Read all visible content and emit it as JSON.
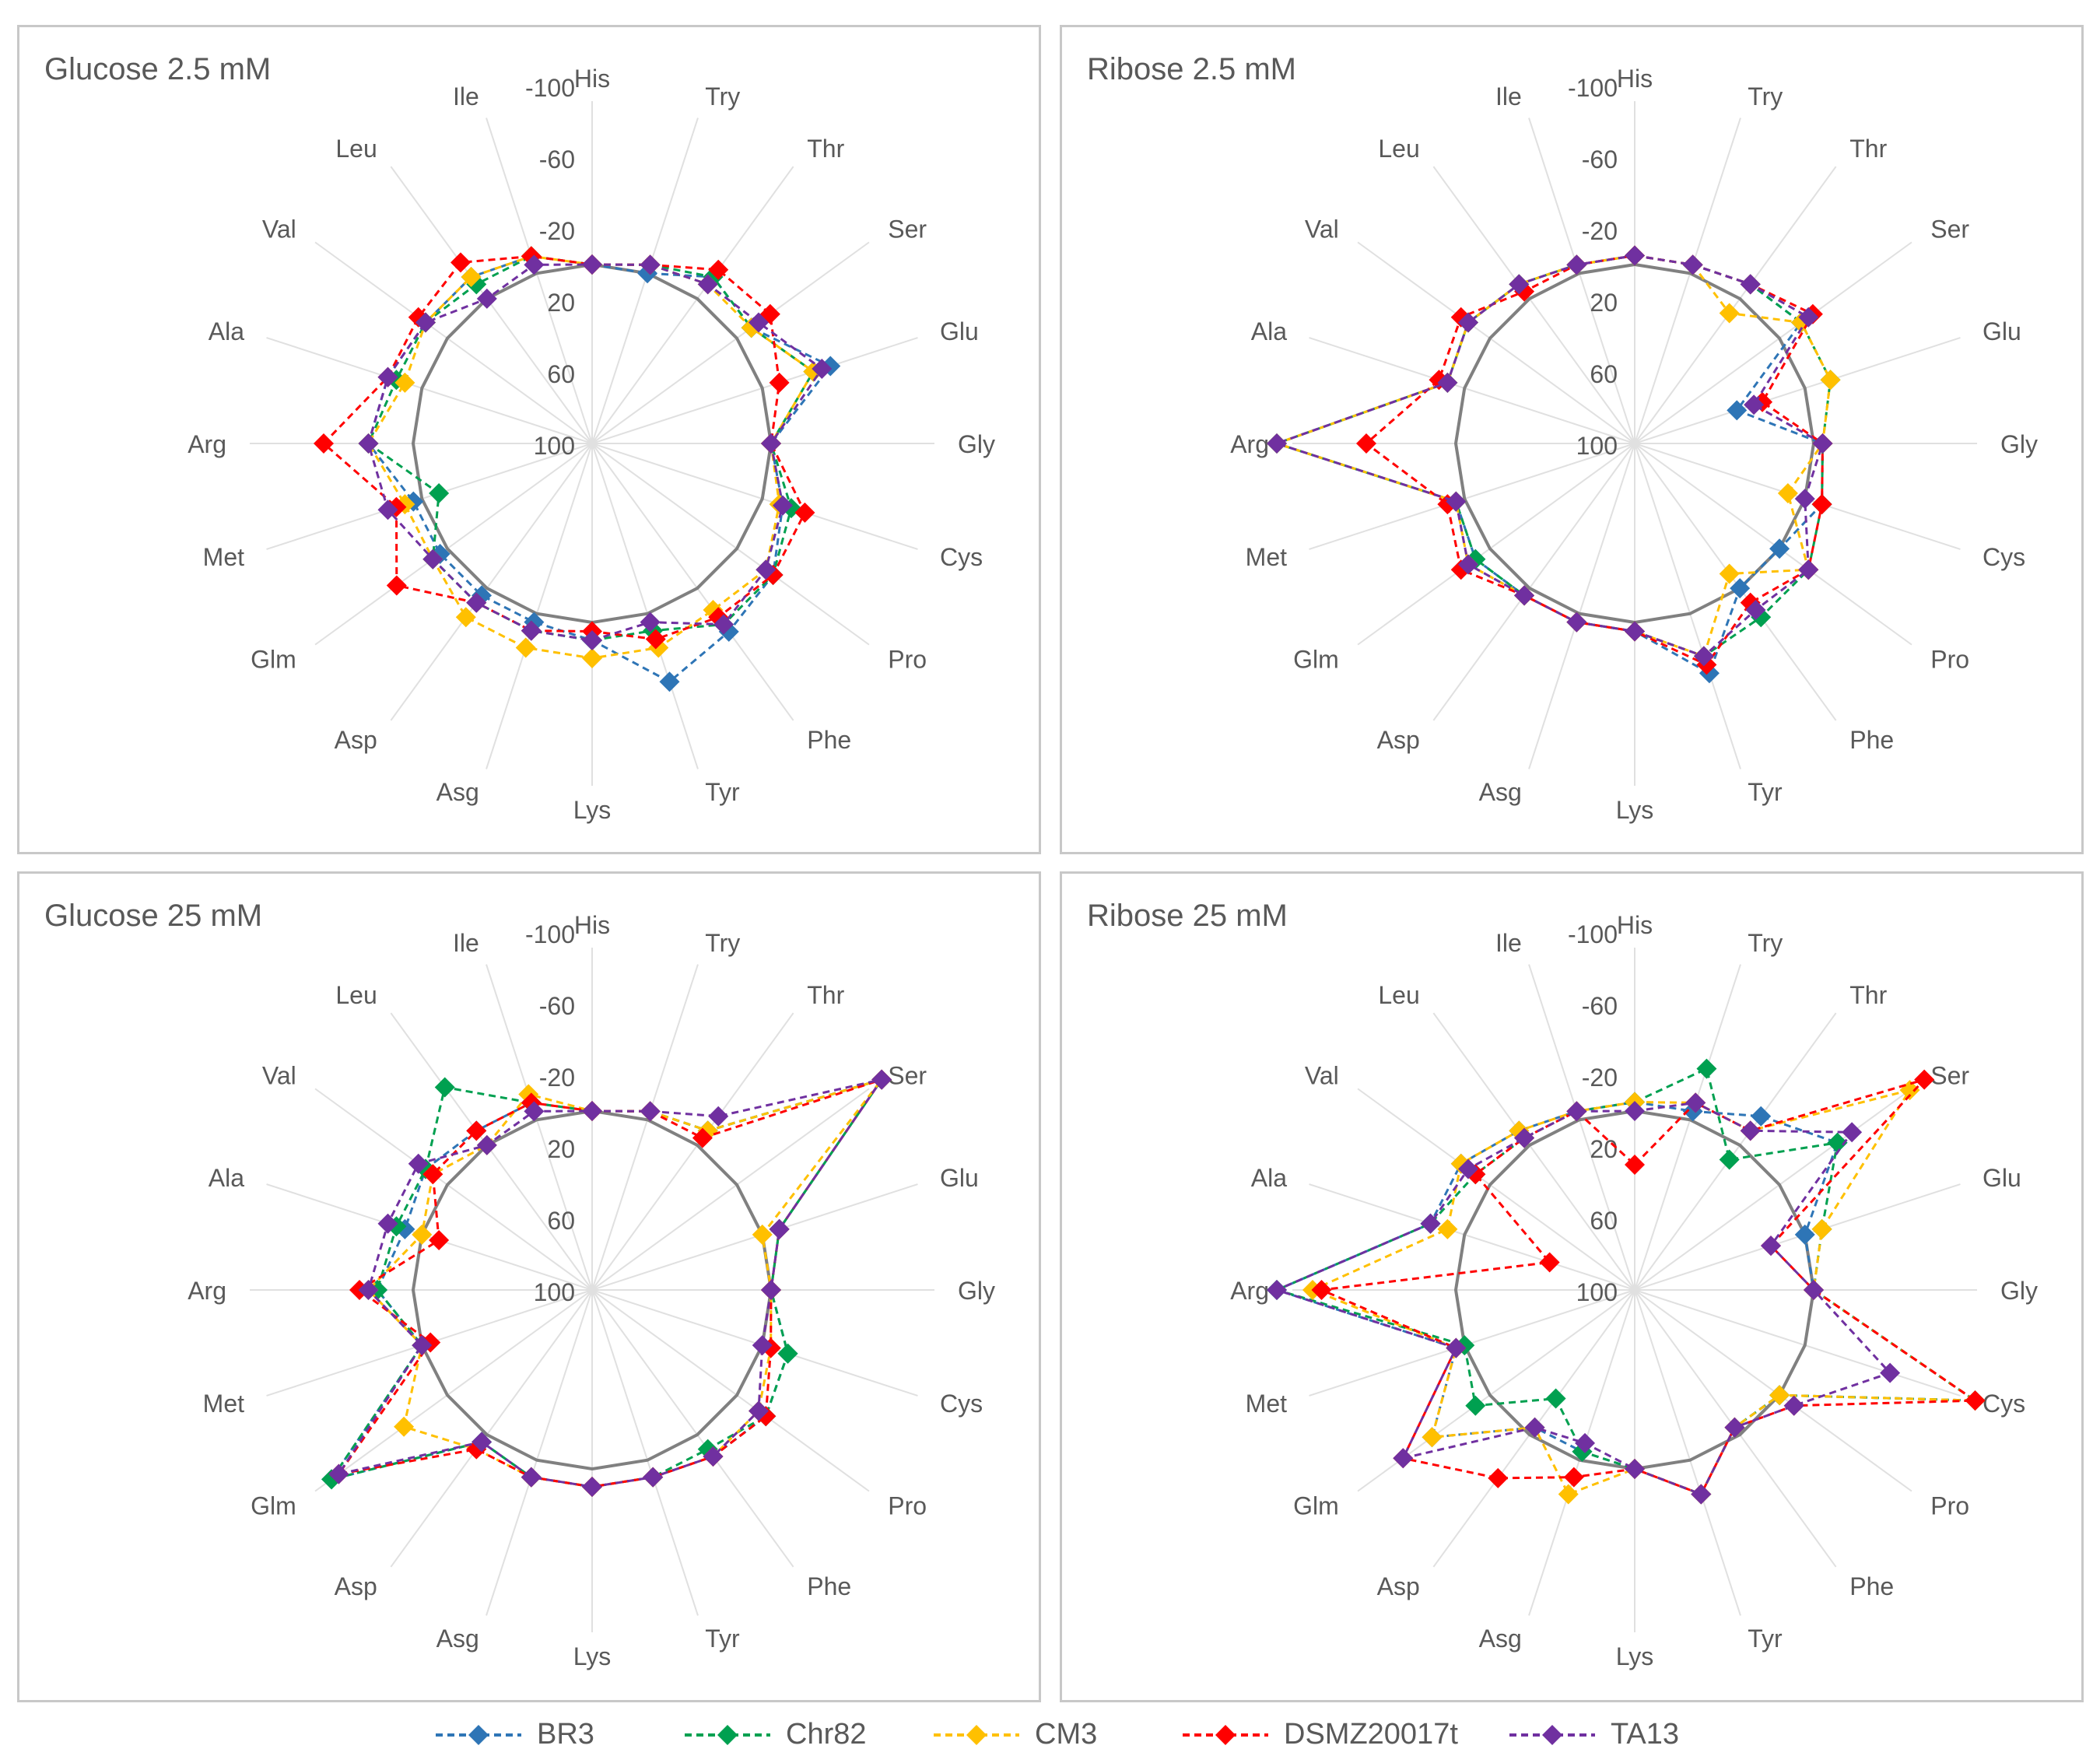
{
  "legend": {
    "items": [
      {
        "name": "BR3",
        "color": "#2e75b6"
      },
      {
        "name": "Chr82",
        "color": "#00a050"
      },
      {
        "name": "CM3",
        "color": "#ffc000"
      },
      {
        "name": "DSMZ20017t",
        "color": "#ff0000"
      },
      {
        "name": "TA13",
        "color": "#7030a0"
      }
    ]
  },
  "chart_data": [
    {
      "type": "radar",
      "title": "Glucose 2.5 mM",
      "categories": [
        "His",
        "Try",
        "Thr",
        "Ser",
        "Glu",
        "Gly",
        "Cys",
        "Pro",
        "Phe",
        "Tyr",
        "Lys",
        "Asg",
        "Asp",
        "Glm",
        "Met",
        "Arg",
        "Ala",
        "Val",
        "Leu",
        "Ile"
      ],
      "rlabels": [
        "-100",
        "-60",
        "-20",
        "20",
        "60",
        "100"
      ],
      "rrange": [
        -100,
        100
      ],
      "series": [
        {
          "name": "BR3",
          "values": [
            0,
            0,
            -15,
            -10,
            -40,
            0,
            -12,
            -25,
            -30,
            -40,
            -10,
            -5,
            -5,
            -5,
            -5,
            -25,
            -20,
            -15,
            -15,
            -10
          ]
        },
        {
          "name": "Chr82",
          "values": [
            0,
            -5,
            -15,
            -10,
            -30,
            0,
            -17,
            -25,
            -25,
            -10,
            -10,
            -10,
            -10,
            -10,
            10,
            -25,
            -15,
            -15,
            -10,
            -10
          ]
        },
        {
          "name": "CM3",
          "values": [
            0,
            -5,
            -10,
            -10,
            -30,
            0,
            -10,
            -20,
            -15,
            -20,
            -20,
            -20,
            -20,
            -10,
            -10,
            -25,
            -10,
            -15,
            -15,
            -10
          ]
        },
        {
          "name": "DSMZ20017t",
          "values": [
            0,
            -5,
            -20,
            -23,
            -10,
            0,
            -25,
            -25,
            -20,
            -15,
            -5,
            -10,
            -10,
            -35,
            -15,
            -50,
            -20,
            -20,
            -25,
            -10
          ]
        },
        {
          "name": "TA13",
          "values": [
            0,
            -5,
            -10,
            -15,
            -35,
            0,
            -12,
            -20,
            -25,
            -5,
            -10,
            -10,
            -10,
            -10,
            -20,
            -25,
            -20,
            -15,
            0,
            -5
          ]
        }
      ]
    },
    {
      "type": "radar",
      "title": "Ribose 2.5 mM",
      "categories": [
        "His",
        "Try",
        "Thr",
        "Ser",
        "Glu",
        "Gly",
        "Cys",
        "Pro",
        "Phe",
        "Tyr",
        "Lys",
        "Asg",
        "Asp",
        "Glm",
        "Met",
        "Arg",
        "Ala",
        "Val",
        "Leu",
        "Ile"
      ],
      "rlabels": [
        "-100",
        "-60",
        "-20",
        "20",
        "60",
        "100"
      ],
      "rrange": [
        -100,
        100
      ],
      "series": [
        {
          "name": "BR3",
          "values": [
            -5,
            -5,
            -10,
            -15,
            40,
            -5,
            -10,
            0,
            0,
            -35,
            -5,
            -5,
            -5,
            -10,
            -5,
            -100,
            -10,
            -15,
            -10,
            -5
          ]
        },
        {
          "name": "Chr82",
          "values": [
            -5,
            -5,
            -10,
            -15,
            -15,
            -5,
            -10,
            -20,
            -20,
            -25,
            -5,
            -5,
            -5,
            -10,
            -5,
            -100,
            -10,
            -15,
            -10,
            -5
          ]
        },
        {
          "name": "CM3",
          "values": [
            -5,
            -5,
            10,
            -15,
            -15,
            -5,
            10,
            -20,
            10,
            -25,
            -5,
            -5,
            -5,
            -15,
            -5,
            -100,
            -10,
            -15,
            -10,
            -5
          ]
        },
        {
          "name": "DSMZ20017t",
          "values": [
            -5,
            -5,
            -10,
            -23,
            25,
            -5,
            -10,
            -20,
            -10,
            -30,
            -5,
            -5,
            -5,
            -20,
            -10,
            -50,
            -15,
            -20,
            -5,
            -5
          ]
        },
        {
          "name": "TA13",
          "values": [
            -5,
            -5,
            -10,
            -20,
            30,
            -5,
            0,
            -20,
            -15,
            -25,
            -5,
            -5,
            -5,
            -15,
            -5,
            -100,
            -10,
            -15,
            -10,
            -5
          ]
        }
      ]
    },
    {
      "type": "radar",
      "title": "Glucose 25 mM",
      "categories": [
        "His",
        "Try",
        "Thr",
        "Ser",
        "Glu",
        "Gly",
        "Cys",
        "Pro",
        "Phe",
        "Tyr",
        "Lys",
        "Asg",
        "Asp",
        "Glm",
        "Met",
        "Arg",
        "Ala",
        "Val",
        "Leu",
        "Ile"
      ],
      "rlabels": [
        "-100",
        "-60",
        "-20",
        "20",
        "60",
        "100"
      ],
      "rrange": [
        -100,
        100
      ],
      "series": [
        {
          "name": "BR3",
          "values": [
            0,
            -5,
            -10,
            -100,
            -10,
            0,
            -15,
            -20,
            -15,
            -10,
            -10,
            -10,
            -5,
            -80,
            0,
            -20,
            -10,
            -15,
            -10,
            -10
          ]
        },
        {
          "name": "Chr82",
          "values": [
            0,
            -5,
            -10,
            -100,
            -10,
            0,
            -15,
            -20,
            -10,
            -10,
            -10,
            -10,
            -5,
            -80,
            0,
            -20,
            -15,
            -15,
            -40,
            -10
          ]
        },
        {
          "name": "CM3",
          "values": [
            0,
            -5,
            -10,
            -100,
            0,
            0,
            -5,
            -15,
            -15,
            -10,
            -10,
            -10,
            -10,
            -30,
            0,
            -25,
            0,
            -10,
            0,
            -15
          ]
        },
        {
          "name": "DSMZ20017t",
          "values": [
            0,
            -5,
            -5,
            -100,
            -10,
            0,
            -5,
            -20,
            -15,
            -10,
            -10,
            -10,
            -10,
            -75,
            5,
            -30,
            10,
            -10,
            -10,
            -10
          ]
        },
        {
          "name": "TA13",
          "values": [
            0,
            -5,
            -20,
            -100,
            -10,
            0,
            0,
            -15,
            -15,
            -10,
            -10,
            -10,
            -5,
            -75,
            0,
            -25,
            -20,
            -20,
            0,
            -5
          ]
        }
      ]
    },
    {
      "type": "radar",
      "title": "Ribose 25 mM",
      "categories": [
        "His",
        "Try",
        "Thr",
        "Ser",
        "Glu",
        "Gly",
        "Cys",
        "Pro",
        "Phe",
        "Tyr",
        "Lys",
        "Asg",
        "Asp",
        "Glm",
        "Met",
        "Arg",
        "Ala",
        "Val",
        "Leu",
        "Ile"
      ],
      "rlabels": [
        "-100",
        "-60",
        "-20",
        "20",
        "60",
        "100"
      ],
      "rrange": [
        -100,
        100
      ],
      "series": [
        {
          "name": "BR3",
          "values": [
            -5,
            -5,
            -20,
            -40,
            0,
            0,
            -100,
            0,
            5,
            -20,
            0,
            5,
            5,
            -40,
            -5,
            -100,
            -20,
            -20,
            -10,
            -5
          ]
        },
        {
          "name": "Chr82",
          "values": [
            -5,
            -30,
            10,
            -40,
            -10,
            0,
            -100,
            0,
            5,
            -20,
            0,
            5,
            25,
            -10,
            0,
            -100,
            -20,
            -10,
            -5,
            -5
          ]
        },
        {
          "name": "CM3",
          "values": [
            -5,
            -10,
            -10,
            -90,
            -10,
            0,
            -100,
            0,
            5,
            -20,
            0,
            -20,
            5,
            -40,
            -5,
            -80,
            -10,
            -20,
            -10,
            -5
          ]
        },
        {
          "name": "DSMZ20017t",
          "values": [
            30,
            -10,
            -10,
            -100,
            20,
            0,
            -100,
            -10,
            5,
            -20,
            0,
            -10,
            -30,
            -60,
            -5,
            -75,
            50,
            -10,
            -5,
            -5
          ]
        },
        {
          "name": "TA13",
          "values": [
            0,
            -10,
            -10,
            -50,
            20,
            0,
            -50,
            -10,
            5,
            -20,
            0,
            10,
            5,
            -60,
            -5,
            -100,
            -20,
            -15,
            -5,
            -5
          ]
        }
      ]
    }
  ]
}
